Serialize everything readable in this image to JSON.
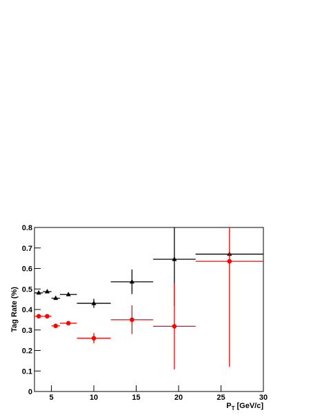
{
  "chart_data": {
    "type": "errorbar",
    "y_label": "Tag Rate (%)",
    "x_label": "P",
    "x_label_sub": "T",
    "x_label_unit": "[GeV/c]",
    "xlim": [
      3,
      30
    ],
    "xticks": [
      5,
      10,
      15,
      20,
      25,
      30
    ],
    "ylim": [
      0,
      0.8
    ],
    "yticks": [
      0,
      0.1,
      0.2,
      0.3,
      0.4,
      0.5,
      0.6,
      0.7,
      0.8
    ],
    "x": [
      3.5,
      4.5,
      5.5,
      7,
      10,
      14.5,
      19.5,
      26
    ],
    "xerr": [
      0.5,
      0.5,
      0.5,
      1,
      2,
      2.5,
      2.5,
      4
    ],
    "series": [
      {
        "color": "#000000",
        "marker": "triangle",
        "values": [
          0.481,
          0.487,
          0.455,
          0.473,
          0.43,
          0.535,
          0.645,
          0.67
        ],
        "yerr": [
          0.005,
          0.005,
          0.006,
          0.006,
          0.022,
          0.06,
          0.23,
          0.01
        ]
      },
      {
        "color": "#ff0000",
        "marker": "circle",
        "values": [
          0.367,
          0.367,
          0.32,
          0.333,
          0.26,
          0.35,
          0.318,
          0.635
        ],
        "yerr": [
          0.005,
          0.005,
          0.008,
          0.01,
          0.025,
          0.07,
          0.21,
          0.515
        ]
      }
    ]
  }
}
